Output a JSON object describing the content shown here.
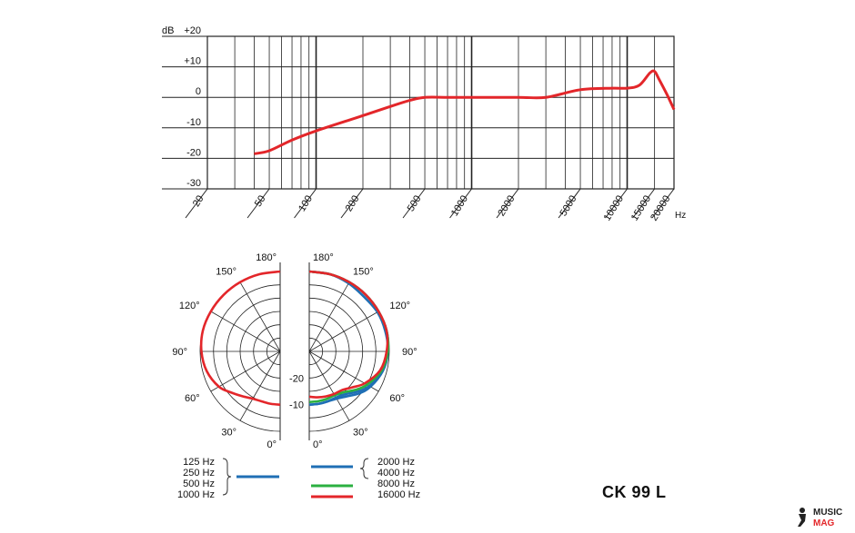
{
  "model": "CK 99 L",
  "watermark": {
    "line1": "MUSIC",
    "line2": "MAG"
  },
  "colors": {
    "red": "#e3262a",
    "blue": "#1f6fb5",
    "green": "#2bb040",
    "grid": "#222222"
  },
  "chart_data": [
    {
      "type": "line",
      "title": "",
      "xlabel": "Hz",
      "ylabel": "dB",
      "xscale": "log",
      "grid": true,
      "xlim": [
        20,
        20000
      ],
      "ylim": [
        -30,
        20
      ],
      "x_ticks": [
        "20",
        "50",
        "100",
        "200",
        "500",
        "1000",
        "2000",
        "5000",
        "10000",
        "15000",
        "20000"
      ],
      "y_ticks": [
        "+20",
        "+10",
        "0",
        "-10",
        "-20",
        "-30"
      ],
      "series": [
        {
          "color": "red",
          "x": [
            40,
            50,
            70,
            100,
            200,
            300,
            400,
            500,
            700,
            1000,
            2000,
            3000,
            5000,
            8000,
            10000,
            12000,
            14000,
            15000,
            16000,
            18000,
            20000
          ],
          "y": [
            -18.5,
            -17.5,
            -14,
            -11,
            -6,
            -3,
            -1,
            0,
            0,
            0,
            0,
            0,
            2.5,
            3,
            3,
            4,
            8,
            8.5,
            6,
            1,
            -4
          ]
        }
      ]
    },
    {
      "type": "polar",
      "angle_labels_left": [
        "180°",
        "150°",
        "120°",
        "90°",
        "60°",
        "30°",
        "0°"
      ],
      "angle_labels_right": [
        "180°",
        "150°",
        "120°",
        "90°",
        "60°",
        "30°",
        "0°"
      ],
      "level_labels": [
        "-20",
        "-10"
      ],
      "legend_left": {
        "items": [
          "125 Hz",
          "250 Hz",
          "500 Hz",
          "1000 Hz"
        ],
        "color": "blue"
      },
      "legend_right": [
        {
          "label": "2000 Hz",
          "color": "blue"
        },
        {
          "label": "4000 Hz",
          "color": "blue"
        },
        {
          "label": "8000 Hz",
          "color": "green"
        },
        {
          "label": "16000 Hz",
          "color": "red"
        }
      ],
      "series": [
        {
          "side": "left",
          "freq": "125–1000 Hz",
          "color": "red",
          "angles": [
            0,
            10,
            20,
            30,
            40,
            50,
            60,
            75,
            90,
            105,
            120,
            135,
            150,
            165,
            180
          ],
          "levels_db": [
            -10,
            -10,
            -10,
            -9.5,
            -8,
            -6,
            -3.5,
            -1.5,
            -0.5,
            0,
            0,
            0,
            0,
            0,
            0
          ]
        },
        {
          "side": "right",
          "freq": "2000 Hz",
          "color": "blue",
          "angles": [
            0,
            10,
            20,
            30,
            40,
            50,
            60,
            75,
            90,
            105,
            120,
            135,
            150,
            165,
            180
          ],
          "levels_db": [
            -10,
            -10,
            -10,
            -9.5,
            -8,
            -5.5,
            -3.5,
            -1.5,
            -0.5,
            0,
            0,
            0,
            0,
            0,
            0
          ]
        },
        {
          "side": "right",
          "freq": "4000 Hz",
          "color": "blue",
          "angles": [
            0,
            10,
            20,
            30,
            40,
            50,
            60,
            75,
            90,
            105,
            120,
            135,
            150,
            165,
            180
          ],
          "levels_db": [
            -10,
            -10,
            -10,
            -10,
            -9,
            -6.5,
            -4,
            -1.5,
            -0.5,
            -0.5,
            -0.5,
            -1,
            -0.5,
            0,
            0
          ]
        },
        {
          "side": "right",
          "freq": "8000 Hz",
          "color": "green",
          "angles": [
            0,
            10,
            20,
            30,
            40,
            50,
            60,
            75,
            90,
            105,
            120,
            135,
            150,
            165,
            180
          ],
          "levels_db": [
            -11,
            -11,
            -11,
            -11,
            -10,
            -7.5,
            -5,
            -2,
            -0.5,
            0,
            0,
            0,
            0,
            0,
            0
          ]
        },
        {
          "side": "right",
          "freq": "16000 Hz",
          "color": "red",
          "angles": [
            0,
            10,
            20,
            30,
            40,
            50,
            60,
            75,
            90,
            105,
            120,
            135,
            150,
            165,
            180
          ],
          "levels_db": [
            -13,
            -12.5,
            -12,
            -11.5,
            -11,
            -9,
            -6,
            -2.5,
            -1,
            0,
            0,
            0,
            0,
            0,
            0
          ]
        }
      ]
    }
  ]
}
